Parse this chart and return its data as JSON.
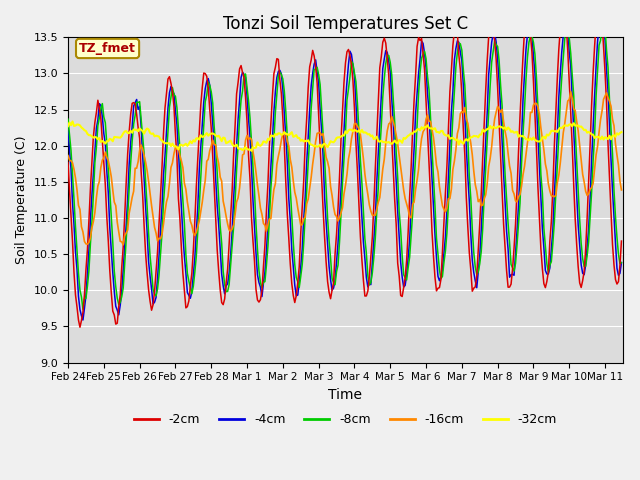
{
  "title": "Tonzi Soil Temperatures Set C",
  "xlabel": "Time",
  "ylabel": "Soil Temperature (C)",
  "ylim": [
    9.0,
    13.5
  ],
  "yticks": [
    9.0,
    9.5,
    10.0,
    10.5,
    11.0,
    11.5,
    12.0,
    12.5,
    13.0,
    13.5
  ],
  "colors": {
    "-2cm": "#dd0000",
    "-4cm": "#0000dd",
    "-8cm": "#00cc00",
    "-16cm": "#ff8800",
    "-32cm": "#ffff00"
  },
  "annotation_text": "TZ_fmet",
  "annotation_box_color": "#ffffcc",
  "annotation_text_color": "#aa0000",
  "annotation_border_color": "#aa8800",
  "fig_bg_color": "#f0f0f0",
  "plot_bg_color": "#dcdcdc",
  "grid_color": "#ffffff",
  "xtick_labels": [
    "Feb 24",
    "Feb 25",
    "Feb 26",
    "Feb 27",
    "Feb 28",
    "Mar 1",
    "Mar 2",
    "Mar 3",
    "Mar 4",
    "Mar 5",
    "Mar 6",
    "Mar 7",
    "Mar 8",
    "Mar 9",
    "Mar 10",
    "Mar 11"
  ]
}
